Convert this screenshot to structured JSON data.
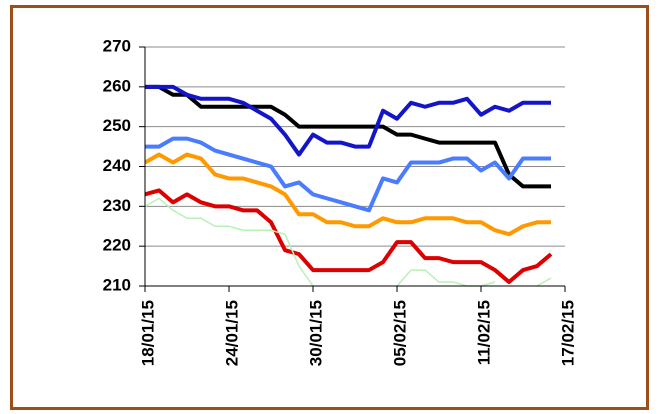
{
  "chart_data": {
    "type": "line",
    "x": [
      "2015-01-18",
      "2015-01-19",
      "2015-01-20",
      "2015-01-21",
      "2015-01-22",
      "2015-01-23",
      "2015-01-24",
      "2015-01-25",
      "2015-01-26",
      "2015-01-27",
      "2015-01-28",
      "2015-01-29",
      "2015-01-30",
      "2015-01-31",
      "2015-02-01",
      "2015-02-02",
      "2015-02-03",
      "2015-02-04",
      "2015-02-05",
      "2015-02-06",
      "2015-02-07",
      "2015-02-08",
      "2015-02-09",
      "2015-02-10",
      "2015-02-11",
      "2015-02-12",
      "2015-02-13",
      "2015-02-14",
      "2015-02-15",
      "2015-02-16"
    ],
    "series": [
      {
        "color": "#000000",
        "width": 4,
        "values": [
          260,
          260,
          258,
          258,
          255,
          255,
          255,
          255,
          255,
          255,
          253,
          250,
          250,
          250,
          250,
          250,
          250,
          250,
          248,
          248,
          247,
          246,
          246,
          246,
          246,
          246,
          238,
          235,
          235,
          235
        ]
      },
      {
        "color": "#1414c8",
        "width": 4,
        "values": [
          260,
          260,
          260,
          258,
          257,
          257,
          257,
          256,
          254,
          252,
          248,
          243,
          248,
          246,
          246,
          245,
          245,
          254,
          252,
          256,
          255,
          256,
          256,
          257,
          253,
          255,
          254,
          256,
          256,
          256
        ]
      },
      {
        "color": "#4a7cff",
        "width": 4,
        "values": [
          245,
          245,
          247,
          247,
          246,
          244,
          243,
          242,
          241,
          240,
          235,
          236,
          233,
          232,
          231,
          230,
          229,
          237,
          236,
          241,
          241,
          241,
          242,
          242,
          239,
          241,
          237,
          242,
          242,
          242
        ]
      },
      {
        "color": "#ff9900",
        "width": 4,
        "values": [
          241,
          243,
          241,
          243,
          242,
          238,
          237,
          237,
          236,
          235,
          233,
          228,
          228,
          226,
          226,
          225,
          225,
          227,
          226,
          226,
          227,
          227,
          227,
          226,
          226,
          224,
          223,
          225,
          226,
          226
        ]
      },
      {
        "color": "#dd0000",
        "width": 4,
        "values": [
          233,
          234,
          231,
          233,
          231,
          230,
          230,
          229,
          229,
          226,
          219,
          218,
          214,
          214,
          214,
          214,
          214,
          216,
          221,
          221,
          217,
          217,
          216,
          216,
          216,
          214,
          211,
          214,
          215,
          218
        ]
      },
      {
        "color": "#b8f0b8",
        "width": 1.5,
        "values": [
          230,
          232,
          229,
          227,
          227,
          225,
          225,
          224,
          224,
          224,
          223,
          215,
          210,
          null,
          null,
          null,
          null,
          null,
          210,
          214,
          214,
          211,
          211,
          210,
          210,
          211,
          null,
          null,
          210,
          212
        ]
      }
    ],
    "xlim": [
      "2015-01-18",
      "2015-02-17"
    ],
    "xticks": [
      {
        "value": "2015-01-18",
        "label": "18/01/15"
      },
      {
        "value": "2015-01-24",
        "label": "24/01/15"
      },
      {
        "value": "2015-01-30",
        "label": "30/01/15"
      },
      {
        "value": "2015-02-05",
        "label": "05/02/15"
      },
      {
        "value": "2015-02-11",
        "label": "11/02/15"
      },
      {
        "value": "2015-02-17",
        "label": "17/02/15"
      }
    ],
    "ylim": [
      210,
      270
    ],
    "yticks": [
      210,
      220,
      230,
      240,
      250,
      260,
      270
    ],
    "grid": true
  }
}
